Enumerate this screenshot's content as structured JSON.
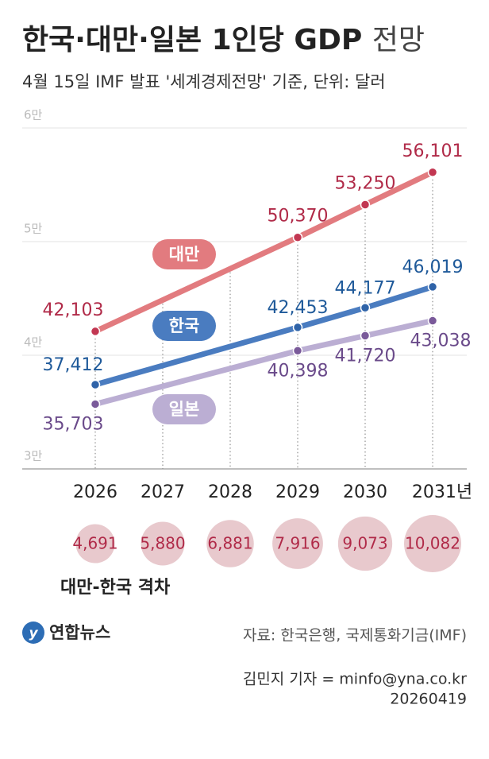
{
  "header": {
    "title": "한국·대만·일본 1인당 GDP",
    "title_suffix": "전망",
    "subtitle": "4월 15일 IMF 발표 '세계경제전망' 기준, 단위: 달러"
  },
  "chart_data": [
    {
      "type": "line",
      "xlim": [
        2026,
        2031
      ],
      "xticks": [
        2026,
        2027,
        2028,
        2029,
        2030,
        {
          "value": 2031,
          "label": "2031년"
        }
      ],
      "ylim": [
        30000,
        60000
      ],
      "yticks": [
        {
          "value": 30000,
          "label": "3만"
        },
        {
          "value": 40000,
          "label": "4만"
        },
        {
          "value": 50000,
          "label": "5만"
        },
        {
          "value": 60000,
          "label": "6만"
        }
      ],
      "grid": true,
      "series": [
        {
          "name": "대만",
          "color": "#e27b7f",
          "marker_color": "#c23752",
          "label_color": "#b02a48",
          "x": [
            2026,
            2029,
            2030,
            2031
          ],
          "values": [
            42103,
            50370,
            53250,
            56101
          ],
          "value_labels": [
            "42,103",
            "50,370",
            "53,250",
            "56,101"
          ]
        },
        {
          "name": "한국",
          "color": "#4a7cc0",
          "marker_color": "#2f63a8",
          "label_color": "#1f5a9a",
          "x": [
            2026,
            2029,
            2030,
            2031
          ],
          "values": [
            37412,
            42453,
            44177,
            46019
          ],
          "value_labels": [
            "37,412",
            "42,453",
            "44,177",
            "46,019"
          ]
        },
        {
          "name": "일본",
          "color": "#bbaed3",
          "marker_color": "#7a5a9a",
          "label_color": "#6a4a8a",
          "x": [
            2026,
            2029,
            2030,
            2031
          ],
          "values": [
            35703,
            40398,
            41720,
            43038
          ],
          "value_labels": [
            "35,703",
            "40,398",
            "41,720",
            "43,038"
          ]
        }
      ]
    },
    {
      "type": "bubble",
      "title": "대만-한국 격차",
      "color": "#e8c9cd",
      "label_color": "#b02a48",
      "values": [
        4691,
        5880,
        6881,
        7916,
        9073,
        10082
      ],
      "value_labels": [
        "4,691",
        "5,880",
        "6,881",
        "7,916",
        "9,073",
        "10,082"
      ]
    }
  ],
  "footer": {
    "logo": "연합뉴스",
    "source": "자료: 한국은행, 국제통화기금(IMF)",
    "credit": "김민지 기자 = minfo@yna.co.kr",
    "date": "20260419"
  }
}
